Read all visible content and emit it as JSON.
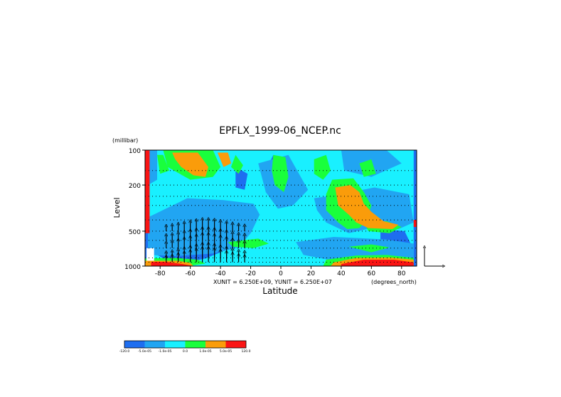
{
  "chart_data": {
    "type": "heatmap",
    "title": "EPFLX_1999-06_NCEP.nc",
    "xlabel": "Latitude",
    "ylabel": "Level",
    "yunit": "(millibar)",
    "xunit_label": "(degrees_north)",
    "vector_scale_text": "XUNIT = 6.250E+09, YUNIT = 6.250E+07",
    "x_range": [
      -90,
      90
    ],
    "y_range": [
      1000,
      100
    ],
    "y_scale": "log",
    "x_ticks": [
      "-80",
      "-60",
      "-40",
      "-20",
      "0",
      "20",
      "40",
      "60",
      "80"
    ],
    "x_tick_values": [
      -80,
      -60,
      -40,
      -20,
      0,
      20,
      40,
      60,
      80
    ],
    "y_ticks": [
      "100",
      "200",
      "500",
      "1000"
    ],
    "y_tick_values": [
      100,
      200,
      500,
      1000
    ],
    "grid": "dotted",
    "colorbar": {
      "labels": [
        "-120.0",
        "-5.0e-05",
        "-1.0e-05",
        "0.0",
        "1.0e-05",
        "5.0e-05",
        "120.0"
      ],
      "colors": [
        "#1e6ef0",
        "#21a5f2",
        "#19f0ff",
        "#19ff3c",
        "#fa9c0a",
        "#fa1414"
      ]
    },
    "fields": {
      "background": "#19f0ff",
      "regions": [
        {
          "color": "#1e6ef0",
          "poly": [
            [
              -85,
              430
            ],
            [
              -50,
              300
            ],
            [
              -30,
              310
            ],
            [
              -22,
              360
            ],
            [
              -30,
              480
            ],
            [
              -42,
              520
            ],
            [
              -58,
              640
            ],
            [
              -75,
              700
            ],
            [
              -85,
              750
            ]
          ]
        },
        {
          "color": "#1e6ef0",
          "poly": [
            [
              -82,
              620
            ],
            [
              -45,
              560
            ],
            [
              -35,
              620
            ],
            [
              -40,
              760
            ],
            [
              -50,
              860
            ],
            [
              -62,
              930
            ],
            [
              -75,
              900
            ],
            [
              -82,
              800
            ]
          ]
        },
        {
          "color": "#1e6ef0",
          "poly": [
            [
              -90,
              100
            ],
            [
              -88,
              100
            ],
            [
              -88,
              1000
            ],
            [
              -90,
              1000
            ]
          ]
        },
        {
          "color": "#1e6ef0",
          "poly": [
            [
              -5,
              110
            ],
            [
              -2,
              180
            ],
            [
              -3,
              240
            ],
            [
              -8,
              220
            ],
            [
              -10,
              150
            ]
          ]
        },
        {
          "color": "#1e6ef0",
          "poly": [
            [
              50,
              230
            ],
            [
              68,
              240
            ],
            [
              80,
              300
            ],
            [
              72,
              380
            ],
            [
              55,
              350
            ],
            [
              48,
              290
            ]
          ]
        },
        {
          "color": "#1e6ef0",
          "poly": [
            [
              66,
              480
            ],
            [
              82,
              500
            ],
            [
              86,
              640
            ],
            [
              75,
              700
            ],
            [
              66,
              600
            ]
          ]
        },
        {
          "color": "#1e6ef0",
          "poly": [
            [
              88,
              100
            ],
            [
              90,
              100
            ],
            [
              90,
              1000
            ],
            [
              88,
              1000
            ]
          ]
        },
        {
          "color": "#1e6ef0",
          "poly": [
            [
              -30,
              140
            ],
            [
              -22,
              160
            ],
            [
              -24,
              220
            ],
            [
              -30,
              210
            ]
          ]
        },
        {
          "color": "#21a5f2",
          "poly": [
            [
              -88,
              380
            ],
            [
              -62,
              260
            ],
            [
              -38,
              270
            ],
            [
              -18,
              290
            ],
            [
              -14,
              360
            ],
            [
              -20,
              520
            ],
            [
              -28,
              690
            ],
            [
              -45,
              780
            ],
            [
              -70,
              820
            ],
            [
              -88,
              800
            ]
          ]
        },
        {
          "color": "#21a5f2",
          "poly": [
            [
              -15,
              130
            ],
            [
              5,
              110
            ],
            [
              12,
              160
            ],
            [
              18,
              220
            ],
            [
              8,
              300
            ],
            [
              -2,
              320
            ],
            [
              -10,
              230
            ]
          ]
        },
        {
          "color": "#21a5f2",
          "poly": [
            [
              22,
              260
            ],
            [
              40,
              240
            ],
            [
              62,
              210
            ],
            [
              85,
              240
            ],
            [
              88,
              420
            ],
            [
              78,
              480
            ],
            [
              60,
              470
            ],
            [
              45,
              520
            ],
            [
              30,
              420
            ],
            [
              24,
              330
            ]
          ]
        },
        {
          "color": "#21a5f2",
          "poly": [
            [
              10,
              620
            ],
            [
              35,
              560
            ],
            [
              70,
              590
            ],
            [
              88,
              640
            ],
            [
              88,
              900
            ],
            [
              60,
              870
            ],
            [
              35,
              900
            ],
            [
              15,
              800
            ]
          ]
        },
        {
          "color": "#21a5f2",
          "poly": [
            [
              40,
              100
            ],
            [
              70,
              100
            ],
            [
              80,
              130
            ],
            [
              60,
              170
            ],
            [
              42,
              150
            ]
          ]
        },
        {
          "color": "#21a5f2",
          "poly": [
            [
              -88,
              100
            ],
            [
              -82,
              100
            ],
            [
              -82,
              180
            ],
            [
              -88,
              200
            ]
          ]
        },
        {
          "color": "#19ff3c",
          "poly": [
            [
              -78,
              100
            ],
            [
              -45,
              100
            ],
            [
              -40,
              140
            ],
            [
              -45,
              170
            ],
            [
              -60,
              180
            ],
            [
              -75,
              140
            ]
          ]
        },
        {
          "color": "#19ff3c",
          "poly": [
            [
              -82,
              110
            ],
            [
              -78,
              110
            ],
            [
              -74,
              150
            ],
            [
              -80,
              160
            ]
          ]
        },
        {
          "color": "#19ff3c",
          "poly": [
            [
              -30,
              110
            ],
            [
              -25,
              135
            ],
            [
              -28,
              160
            ],
            [
              -33,
              140
            ]
          ]
        },
        {
          "color": "#19ff3c",
          "poly": [
            [
              -5,
              110
            ],
            [
              3,
              115
            ],
            [
              5,
              170
            ],
            [
              2,
              230
            ],
            [
              -4,
              200
            ],
            [
              -6,
              150
            ]
          ]
        },
        {
          "color": "#19ff3c",
          "poly": [
            [
              22,
              120
            ],
            [
              30,
              110
            ],
            [
              33,
              150
            ],
            [
              28,
              180
            ],
            [
              22,
              160
            ]
          ]
        },
        {
          "color": "#19ff3c",
          "poly": [
            [
              52,
              130
            ],
            [
              60,
              120
            ],
            [
              63,
              160
            ],
            [
              55,
              170
            ]
          ]
        },
        {
          "color": "#19ff3c",
          "poly": [
            [
              -35,
              620
            ],
            [
              -15,
              580
            ],
            [
              -8,
              640
            ],
            [
              -18,
              700
            ],
            [
              -32,
              680
            ]
          ]
        },
        {
          "color": "#19ff3c",
          "poly": [
            [
              34,
              180
            ],
            [
              48,
              175
            ],
            [
              55,
              230
            ],
            [
              60,
              300
            ],
            [
              57,
              400
            ],
            [
              52,
              470
            ],
            [
              44,
              480
            ],
            [
              38,
              420
            ],
            [
              30,
              330
            ],
            [
              30,
              240
            ]
          ]
        },
        {
          "color": "#19ff3c",
          "poly": [
            [
              55,
              420
            ],
            [
              70,
              410
            ],
            [
              80,
              460
            ],
            [
              72,
              520
            ],
            [
              58,
              500
            ]
          ]
        },
        {
          "color": "#19ff3c",
          "poly": [
            [
              45,
              680
            ],
            [
              60,
              650
            ],
            [
              72,
              690
            ],
            [
              60,
              760
            ]
          ]
        },
        {
          "color": "#19ff3c",
          "poly": [
            [
              -90,
              860
            ],
            [
              -70,
              850
            ],
            [
              -55,
              880
            ],
            [
              -50,
              950
            ],
            [
              -62,
              1000
            ],
            [
              -90,
              1000
            ]
          ]
        },
        {
          "color": "#19ff3c",
          "poly": [
            [
              30,
              880
            ],
            [
              50,
              810
            ],
            [
              70,
              800
            ],
            [
              88,
              850
            ],
            [
              88,
              1000
            ],
            [
              28,
              1000
            ]
          ]
        },
        {
          "color": "#fa9c0a",
          "poly": [
            [
              -72,
              105
            ],
            [
              -55,
              105
            ],
            [
              -48,
              140
            ],
            [
              -50,
              170
            ],
            [
              -58,
              165
            ],
            [
              -66,
              140
            ],
            [
              -70,
              120
            ]
          ]
        },
        {
          "color": "#fa9c0a",
          "poly": [
            [
              -42,
              105
            ],
            [
              -35,
              105
            ],
            [
              -33,
              130
            ],
            [
              -38,
              140
            ]
          ]
        },
        {
          "color": "#fa9c0a",
          "poly": [
            [
              36,
              210
            ],
            [
              46,
              200
            ],
            [
              52,
              230
            ],
            [
              55,
              290
            ],
            [
              60,
              340
            ],
            [
              68,
              410
            ],
            [
              78,
              440
            ],
            [
              74,
              480
            ],
            [
              58,
              470
            ],
            [
              50,
              420
            ],
            [
              45,
              360
            ],
            [
              38,
              300
            ]
          ]
        },
        {
          "color": "#fa9c0a",
          "poly": [
            [
              -90,
              900
            ],
            [
              -68,
              900
            ],
            [
              -60,
              940
            ],
            [
              -58,
              1000
            ],
            [
              -90,
              1000
            ]
          ]
        },
        {
          "color": "#fa9c0a",
          "poly": [
            [
              35,
              930
            ],
            [
              50,
              850
            ],
            [
              72,
              840
            ],
            [
              88,
              880
            ],
            [
              88,
              1000
            ],
            [
              33,
              1000
            ]
          ]
        },
        {
          "color": "#fa1414",
          "poly": [
            [
              -90,
              100
            ],
            [
              -87,
              100
            ],
            [
              -87,
              520
            ],
            [
              -90,
              520
            ]
          ]
        },
        {
          "color": "#fa1414",
          "poly": [
            [
              -86,
              920
            ],
            [
              -76,
              920
            ],
            [
              -65,
              960
            ],
            [
              -58,
              1000
            ],
            [
              -86,
              1000
            ]
          ]
        },
        {
          "color": "#fa1414",
          "poly": [
            [
              40,
              960
            ],
            [
              55,
              880
            ],
            [
              75,
              880
            ],
            [
              88,
              930
            ],
            [
              88,
              1000
            ],
            [
              40,
              1000
            ]
          ]
        },
        {
          "color": "#fa1414",
          "poly": [
            [
              88,
              400
            ],
            [
              90,
              400
            ],
            [
              90,
              460
            ],
            [
              88,
              460
            ]
          ]
        },
        {
          "color": "#ffffff",
          "poly": [
            [
              -89,
              700
            ],
            [
              -84,
              700
            ],
            [
              -84,
              900
            ],
            [
              -89,
              900
            ]
          ]
        }
      ]
    },
    "vectors": {
      "x": [
        -76,
        -72,
        -68,
        -64,
        -60,
        -56,
        -52,
        -48,
        -44,
        -40,
        -36,
        -32,
        -28,
        -24
      ],
      "v": [
        0.15,
        0.25,
        0.4,
        0.55,
        0.7,
        0.85,
        1.0,
        1.0,
        0.9,
        0.75,
        0.6,
        0.45,
        0.3,
        0.2
      ]
    }
  }
}
